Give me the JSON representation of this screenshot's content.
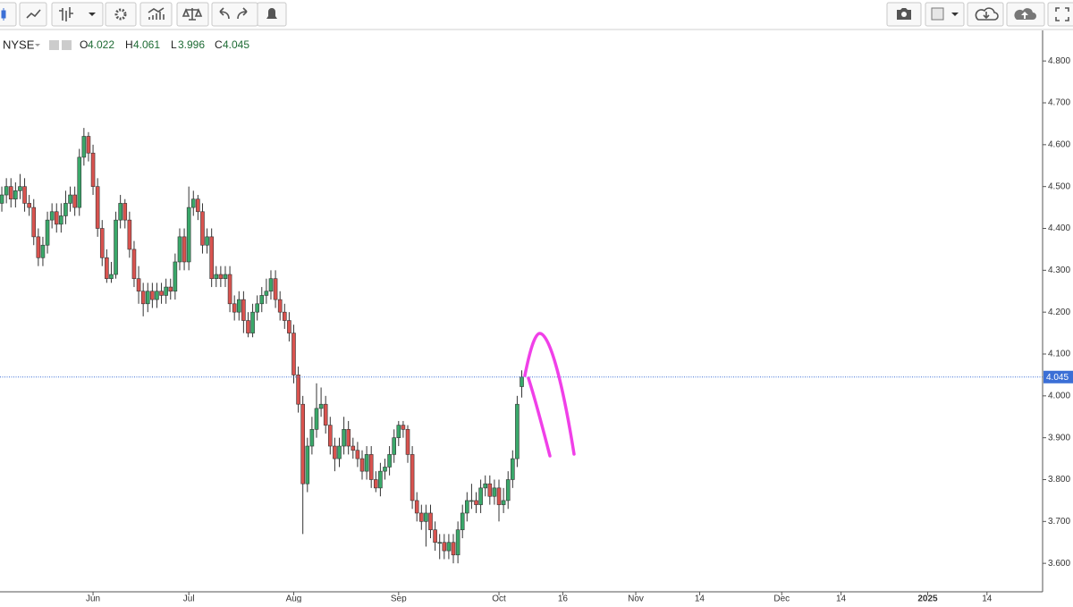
{
  "chart_data": {
    "type": "candlestick",
    "exchange": "NYSE",
    "ohlc_prefixes": [
      "O",
      "H",
      "L",
      "C"
    ],
    "open": [
      4.46,
      4.48,
      4.5,
      4.47,
      4.49,
      4.5,
      4.46,
      4.45,
      4.38,
      4.33,
      4.36,
      4.42,
      4.44,
      4.41,
      4.43,
      4.46,
      4.48,
      4.45,
      4.57,
      4.62,
      4.58,
      4.5,
      4.4,
      4.33,
      4.28,
      4.29,
      4.42,
      4.46,
      4.42,
      4.35,
      4.28,
      4.25,
      4.22,
      4.25,
      4.23,
      4.25,
      4.24,
      4.26,
      4.25,
      4.32,
      4.38,
      4.32,
      4.45,
      4.47,
      4.44,
      4.36,
      4.38,
      4.28,
      4.29,
      4.28,
      4.29,
      4.22,
      4.2,
      4.23,
      4.18,
      4.15,
      4.2,
      4.22,
      4.24,
      4.25,
      4.28,
      4.23,
      4.2,
      4.18,
      4.15,
      4.05,
      3.98,
      3.79,
      3.88,
      3.92,
      3.97,
      3.98,
      3.93,
      3.88,
      3.85,
      3.88,
      3.92,
      3.88,
      3.87,
      3.85,
      3.82,
      3.86,
      3.8,
      3.78,
      3.82,
      3.83,
      3.86,
      3.9,
      3.93,
      3.92,
      3.86,
      3.75,
      3.72,
      3.7,
      3.72,
      3.68,
      3.65,
      3.65,
      3.63,
      3.65,
      3.62,
      3.68,
      3.72,
      3.75,
      3.75,
      3.74,
      3.78,
      3.79,
      3.76,
      3.78,
      3.74,
      3.75,
      3.8,
      3.85,
      4.022
    ],
    "high": [
      4.5,
      4.52,
      4.52,
      4.51,
      4.53,
      4.52,
      4.48,
      4.47,
      4.4,
      4.38,
      4.44,
      4.46,
      4.46,
      4.46,
      4.49,
      4.5,
      4.5,
      4.59,
      4.64,
      4.63,
      4.6,
      4.52,
      4.42,
      4.35,
      4.32,
      4.44,
      4.48,
      4.47,
      4.44,
      4.37,
      4.31,
      4.27,
      4.27,
      4.27,
      4.27,
      4.27,
      4.28,
      4.28,
      4.34,
      4.4,
      4.4,
      4.5,
      4.49,
      4.48,
      4.46,
      4.4,
      4.4,
      4.31,
      4.31,
      4.31,
      4.31,
      4.24,
      4.25,
      4.25,
      4.2,
      4.22,
      4.24,
      4.26,
      4.28,
      4.3,
      4.3,
      4.25,
      4.22,
      4.2,
      4.17,
      4.07,
      4.0,
      3.9,
      3.95,
      4.03,
      4.02,
      4.0,
      3.95,
      3.9,
      3.9,
      3.95,
      3.94,
      3.9,
      3.89,
      3.87,
      3.88,
      3.88,
      3.82,
      3.84,
      3.85,
      3.88,
      3.92,
      3.94,
      3.94,
      3.93,
      3.88,
      3.77,
      3.74,
      3.74,
      3.74,
      3.7,
      3.67,
      3.67,
      3.67,
      3.67,
      3.7,
      3.74,
      3.77,
      3.79,
      3.77,
      3.8,
      3.81,
      3.81,
      3.8,
      3.8,
      3.78,
      3.82,
      3.87,
      4.0,
      4.061
    ],
    "low": [
      4.44,
      4.46,
      4.45,
      4.45,
      4.47,
      4.44,
      4.43,
      4.36,
      4.31,
      4.31,
      4.34,
      4.4,
      4.39,
      4.39,
      4.41,
      4.44,
      4.43,
      4.43,
      4.55,
      4.56,
      4.48,
      4.38,
      4.31,
      4.27,
      4.27,
      4.28,
      4.4,
      4.4,
      4.33,
      4.26,
      4.22,
      4.19,
      4.2,
      4.21,
      4.21,
      4.22,
      4.22,
      4.23,
      4.23,
      4.3,
      4.3,
      4.3,
      4.43,
      4.42,
      4.34,
      4.34,
      4.26,
      4.26,
      4.26,
      4.26,
      4.2,
      4.18,
      4.18,
      4.15,
      4.14,
      4.14,
      4.18,
      4.2,
      4.22,
      4.23,
      4.21,
      4.18,
      4.16,
      4.13,
      4.03,
      3.96,
      3.67,
      3.77,
      3.86,
      3.9,
      3.95,
      3.91,
      3.86,
      3.82,
      3.83,
      3.86,
      3.86,
      3.85,
      3.83,
      3.8,
      3.8,
      3.78,
      3.77,
      3.76,
      3.8,
      3.81,
      3.84,
      3.88,
      3.9,
      3.84,
      3.73,
      3.7,
      3.68,
      3.64,
      3.66,
      3.63,
      3.61,
      3.61,
      3.61,
      3.6,
      3.6,
      3.66,
      3.7,
      3.73,
      3.72,
      3.72,
      3.76,
      3.74,
      3.74,
      3.7,
      3.72,
      3.73,
      3.78,
      3.83,
      3.996
    ],
    "close": [
      4.48,
      4.5,
      4.47,
      4.49,
      4.5,
      4.46,
      4.45,
      4.38,
      4.33,
      4.36,
      4.42,
      4.44,
      4.41,
      4.43,
      4.46,
      4.48,
      4.45,
      4.57,
      4.62,
      4.58,
      4.5,
      4.4,
      4.33,
      4.28,
      4.29,
      4.42,
      4.46,
      4.42,
      4.35,
      4.28,
      4.25,
      4.22,
      4.25,
      4.23,
      4.25,
      4.24,
      4.26,
      4.25,
      4.32,
      4.38,
      4.32,
      4.45,
      4.47,
      4.44,
      4.36,
      4.38,
      4.28,
      4.29,
      4.28,
      4.29,
      4.22,
      4.2,
      4.23,
      4.18,
      4.15,
      4.2,
      4.22,
      4.24,
      4.25,
      4.28,
      4.23,
      4.2,
      4.18,
      4.15,
      4.05,
      3.98,
      3.79,
      3.88,
      3.92,
      3.97,
      3.98,
      3.93,
      3.88,
      3.85,
      3.88,
      3.92,
      3.88,
      3.87,
      3.85,
      3.82,
      3.86,
      3.8,
      3.78,
      3.82,
      3.83,
      3.86,
      3.9,
      3.93,
      3.92,
      3.86,
      3.75,
      3.72,
      3.7,
      3.72,
      3.68,
      3.65,
      3.65,
      3.63,
      3.65,
      3.62,
      3.68,
      3.72,
      3.75,
      3.75,
      3.74,
      3.78,
      3.79,
      3.76,
      3.78,
      3.74,
      3.75,
      3.8,
      3.85,
      3.98,
      4.045
    ],
    "up_color": "#3aa86a",
    "down_color": "#d9534f",
    "last_price_color": "#3b6fd6",
    "ylim": [
      3.532,
      4.873
    ],
    "yticks": [
      {
        "value": 3.6,
        "label": "3.600"
      },
      {
        "value": 3.7,
        "label": "3.700"
      },
      {
        "value": 3.8,
        "label": "3.800"
      },
      {
        "value": 3.9,
        "label": "3.900"
      },
      {
        "value": 4.0,
        "label": "4.000"
      },
      {
        "value": 4.1,
        "label": "4.100"
      },
      {
        "value": 4.2,
        "label": "4.200"
      },
      {
        "value": 4.3,
        "label": "4.300"
      },
      {
        "value": 4.4,
        "label": "4.400"
      },
      {
        "value": 4.5,
        "label": "4.500"
      },
      {
        "value": 4.6,
        "label": "4.600"
      },
      {
        "value": 4.7,
        "label": "4.700"
      },
      {
        "value": 4.8,
        "label": "4.800"
      }
    ],
    "xlim": [
      -0.4,
      228
    ],
    "xticks": [
      {
        "value": 20,
        "label": "Jun"
      },
      {
        "value": 41,
        "label": "Jul"
      },
      {
        "value": 64,
        "label": "Aug"
      },
      {
        "value": 87,
        "label": "Sep"
      },
      {
        "value": 109,
        "label": "Oct"
      },
      {
        "value": 123,
        "label": "16"
      },
      {
        "value": 139,
        "label": "Nov"
      },
      {
        "value": 153,
        "label": "14"
      },
      {
        "value": 171,
        "label": "Dec"
      },
      {
        "value": 184,
        "label": "14"
      },
      {
        "value": 203,
        "label": "2025"
      },
      {
        "value": 216,
        "label": "14"
      }
    ]
  }
}
